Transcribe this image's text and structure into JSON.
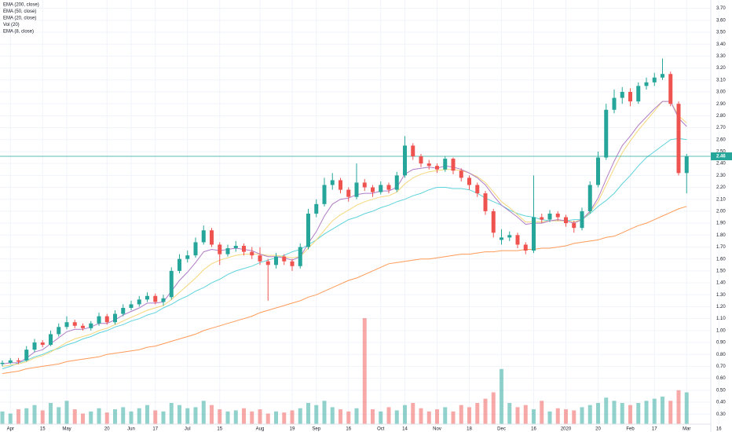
{
  "chart_data": {
    "type": "candlestick",
    "categories": [
      null,
      "Apr",
      null,
      null,
      null,
      "15",
      null,
      null,
      "May",
      null,
      null,
      null,
      null,
      "20",
      null,
      null,
      "Jun",
      null,
      null,
      "17",
      null,
      null,
      null,
      "Jul",
      null,
      null,
      null,
      "15",
      null,
      null,
      null,
      null,
      "Aug",
      null,
      null,
      null,
      "19",
      null,
      null,
      "Sep",
      null,
      null,
      null,
      "16",
      null,
      null,
      null,
      "Oct",
      null,
      null,
      "14",
      null,
      null,
      null,
      "Nov",
      null,
      null,
      null,
      "18",
      null,
      null,
      null,
      "Dec",
      null,
      null,
      null,
      "16",
      null,
      null,
      null,
      "2020",
      null,
      null,
      null,
      "20",
      null,
      null,
      null,
      "Feb",
      null,
      null,
      "17",
      null,
      null,
      null,
      "Mar",
      null,
      null,
      null,
      "16"
    ],
    "open": [
      0.72,
      0.73,
      0.75,
      0.75,
      0.84,
      0.9,
      0.88,
      0.97,
      1.03,
      1.07,
      1.04,
      1.02,
      1.06,
      1.12,
      1.07,
      1.14,
      1.19,
      1.22,
      1.26,
      1.29,
      1.24,
      1.28,
      1.5,
      1.6,
      1.63,
      1.74,
      1.84,
      1.72,
      1.64,
      1.69,
      1.71,
      1.66,
      1.63,
      1.58,
      1.55,
      1.62,
      1.58,
      1.54,
      1.7,
      1.98,
      2.06,
      2.22,
      2.26,
      2.18,
      2.12,
      2.24,
      2.2,
      2.16,
      2.22,
      2.18,
      2.3,
      2.55,
      2.46,
      2.4,
      2.38,
      2.35,
      2.44,
      2.34,
      2.28,
      2.22,
      2.15,
      2.0,
      1.76,
      1.78,
      1.8,
      1.72,
      1.67,
      1.95,
      1.93,
      1.98,
      1.95,
      1.9,
      1.86,
      2.0,
      2.22,
      2.45,
      2.85,
      2.95,
      3.0,
      2.92,
      3.05,
      3.08,
      3.12,
      3.15,
      2.9,
      2.32,
      null,
      null,
      null,
      null
    ],
    "high": [
      0.75,
      0.77,
      0.77,
      0.87,
      0.93,
      0.92,
      1.0,
      1.06,
      1.12,
      1.09,
      1.06,
      1.08,
      1.15,
      1.14,
      1.17,
      1.22,
      1.25,
      1.29,
      1.32,
      1.31,
      1.3,
      1.53,
      1.64,
      1.67,
      1.78,
      1.88,
      1.86,
      1.74,
      1.72,
      1.75,
      1.73,
      1.7,
      1.7,
      1.6,
      1.65,
      1.64,
      1.6,
      1.73,
      2.02,
      2.1,
      2.28,
      2.32,
      2.28,
      2.2,
      2.4,
      2.27,
      2.22,
      2.25,
      2.24,
      2.33,
      2.63,
      2.57,
      2.48,
      2.43,
      2.4,
      2.46,
      2.45,
      2.36,
      2.3,
      2.24,
      2.17,
      2.02,
      1.85,
      1.83,
      1.82,
      1.74,
      2.3,
      1.98,
      2.01,
      2.0,
      1.97,
      1.92,
      2.03,
      2.25,
      2.5,
      2.9,
      3.02,
      3.04,
      3.03,
      3.08,
      3.12,
      3.16,
      3.28,
      3.17,
      2.92,
      2.48,
      null,
      null,
      null,
      null
    ],
    "low": [
      0.7,
      0.72,
      0.72,
      0.74,
      0.82,
      0.86,
      0.87,
      0.95,
      1.01,
      1.02,
      1.0,
      1.0,
      1.04,
      1.05,
      1.05,
      1.12,
      1.17,
      1.2,
      1.24,
      1.22,
      1.21,
      1.26,
      1.48,
      1.57,
      1.61,
      1.72,
      1.7,
      1.55,
      1.62,
      1.66,
      1.63,
      1.6,
      1.55,
      1.25,
      1.52,
      1.55,
      1.5,
      1.52,
      1.68,
      1.95,
      2.04,
      2.18,
      2.15,
      2.08,
      2.1,
      2.17,
      2.12,
      2.14,
      2.15,
      2.16,
      2.28,
      2.43,
      2.37,
      2.35,
      2.32,
      2.33,
      2.31,
      2.25,
      2.18,
      2.12,
      1.97,
      1.78,
      1.72,
      1.75,
      1.69,
      1.64,
      1.65,
      1.9,
      1.91,
      1.92,
      1.87,
      1.82,
      1.84,
      1.98,
      2.2,
      2.43,
      2.82,
      2.9,
      2.88,
      2.9,
      3.02,
      3.05,
      3.1,
      2.88,
      2.3,
      2.15,
      null,
      null,
      null,
      null
    ],
    "close": [
      0.73,
      0.75,
      0.74,
      0.84,
      0.9,
      0.88,
      0.97,
      1.03,
      1.07,
      1.04,
      1.02,
      1.06,
      1.12,
      1.07,
      1.14,
      1.19,
      1.22,
      1.26,
      1.29,
      1.24,
      1.27,
      1.5,
      1.6,
      1.63,
      1.74,
      1.84,
      1.72,
      1.64,
      1.69,
      1.71,
      1.66,
      1.63,
      1.58,
      1.55,
      1.62,
      1.58,
      1.54,
      1.7,
      1.98,
      2.06,
      2.22,
      2.26,
      2.18,
      2.12,
      2.24,
      2.2,
      2.16,
      2.22,
      2.18,
      2.3,
      2.55,
      2.46,
      2.4,
      2.38,
      2.35,
      2.44,
      2.34,
      2.28,
      2.22,
      2.15,
      2.0,
      1.82,
      1.78,
      1.8,
      1.72,
      1.67,
      1.95,
      1.93,
      1.98,
      1.95,
      1.9,
      1.86,
      2.0,
      2.22,
      2.45,
      2.85,
      2.95,
      3.0,
      2.92,
      3.05,
      3.08,
      3.12,
      3.15,
      2.9,
      2.32,
      2.46,
      null,
      null,
      null,
      null
    ],
    "volume": {
      "name": "Vol (20)",
      "values": [
        12,
        10,
        14,
        15,
        18,
        13,
        20,
        16,
        22,
        14,
        10,
        12,
        15,
        11,
        14,
        16,
        12,
        15,
        18,
        13,
        12,
        20,
        18,
        15,
        16,
        22,
        18,
        14,
        12,
        13,
        15,
        12,
        14,
        10,
        12,
        11,
        13,
        15,
        20,
        18,
        22,
        16,
        14,
        12,
        15,
        100,
        14,
        12,
        16,
        13,
        18,
        20,
        15,
        12,
        14,
        16,
        12,
        18,
        16,
        20,
        24,
        30,
        52,
        20,
        16,
        18,
        14,
        22,
        12,
        15,
        14,
        13,
        16,
        18,
        20,
        25,
        22,
        20,
        18,
        20,
        22,
        24,
        26,
        22,
        32,
        30,
        null,
        null,
        null,
        null
      ]
    },
    "series": [
      {
        "name": "EMA (200, close)",
        "color": "#ff9a57",
        "values": [
          0.64,
          0.65,
          0.66,
          0.68,
          0.69,
          0.7,
          0.71,
          0.72,
          0.74,
          0.75,
          0.76,
          0.77,
          0.78,
          0.8,
          0.81,
          0.82,
          0.83,
          0.84,
          0.86,
          0.87,
          0.89,
          0.91,
          0.93,
          0.95,
          0.97,
          1.0,
          1.02,
          1.04,
          1.06,
          1.08,
          1.1,
          1.12,
          1.15,
          1.17,
          1.19,
          1.21,
          1.23,
          1.25,
          1.28,
          1.3,
          1.33,
          1.36,
          1.39,
          1.42,
          1.44,
          1.47,
          1.5,
          1.53,
          1.56,
          1.57,
          1.58,
          1.59,
          1.6,
          1.6,
          1.61,
          1.62,
          1.63,
          1.64,
          1.64,
          1.65,
          1.66,
          1.66,
          1.67,
          1.67,
          1.67,
          1.68,
          1.68,
          1.69,
          1.69,
          1.7,
          1.71,
          1.73,
          1.74,
          1.75,
          1.76,
          1.78,
          1.79,
          1.82,
          1.85,
          1.88,
          1.9,
          1.93,
          1.96,
          1.99,
          2.02,
          2.04,
          null,
          null,
          null,
          null
        ]
      },
      {
        "name": "EMA (50, close)",
        "color": "#5fd3dc",
        "values": [
          0.68,
          0.7,
          0.73,
          0.75,
          0.78,
          0.8,
          0.83,
          0.85,
          0.88,
          0.9,
          0.93,
          0.95,
          0.98,
          1.0,
          1.03,
          1.05,
          1.08,
          1.1,
          1.13,
          1.15,
          1.19,
          1.22,
          1.26,
          1.29,
          1.33,
          1.36,
          1.4,
          1.43,
          1.47,
          1.5,
          1.52,
          1.54,
          1.57,
          1.59,
          1.61,
          1.63,
          1.66,
          1.68,
          1.72,
          1.76,
          1.81,
          1.85,
          1.89,
          1.93,
          1.95,
          1.98,
          2.0,
          2.03,
          2.05,
          2.08,
          2.1,
          2.13,
          2.15,
          2.18,
          2.2,
          2.2,
          2.19,
          2.19,
          2.18,
          2.15,
          2.11,
          2.08,
          2.05,
          2.01,
          1.98,
          1.96,
          1.95,
          1.93,
          1.92,
          1.92,
          1.92,
          1.93,
          1.93,
          1.98,
          2.04,
          2.09,
          2.15,
          2.23,
          2.3,
          2.38,
          2.45,
          2.5,
          2.55,
          2.6,
          2.61,
          2.6,
          null,
          null,
          null,
          null
        ]
      },
      {
        "name": "EMA (20, close)",
        "color": "#f5d77a",
        "values": [
          0.7,
          0.71,
          0.72,
          0.74,
          0.77,
          0.79,
          0.82,
          0.86,
          0.9,
          0.93,
          0.95,
          0.97,
          1.0,
          1.02,
          1.05,
          1.08,
          1.11,
          1.14,
          1.17,
          1.19,
          1.21,
          1.26,
          1.32,
          1.38,
          1.44,
          1.51,
          1.56,
          1.59,
          1.61,
          1.63,
          1.64,
          1.64,
          1.64,
          1.63,
          1.63,
          1.62,
          1.61,
          1.62,
          1.69,
          1.76,
          1.84,
          1.92,
          1.97,
          2.01,
          2.05,
          2.08,
          2.1,
          2.12,
          2.13,
          2.16,
          2.23,
          2.28,
          2.31,
          2.33,
          2.34,
          2.35,
          2.35,
          2.34,
          2.32,
          2.29,
          2.24,
          2.16,
          2.08,
          2.03,
          1.97,
          1.91,
          1.91,
          1.91,
          1.92,
          1.92,
          1.92,
          1.91,
          1.93,
          1.99,
          2.08,
          2.22,
          2.36,
          2.49,
          2.59,
          2.68,
          2.76,
          2.84,
          2.92,
          2.92,
          2.8,
          2.74,
          null,
          null,
          null,
          null
        ]
      },
      {
        "name": "EMA (8, close)",
        "color": "#b07cc6",
        "values": [
          0.72,
          0.73,
          0.73,
          0.77,
          0.82,
          0.84,
          0.89,
          0.94,
          0.99,
          1.01,
          1.01,
          1.03,
          1.06,
          1.06,
          1.09,
          1.13,
          1.16,
          1.19,
          1.23,
          1.23,
          1.24,
          1.33,
          1.42,
          1.49,
          1.57,
          1.66,
          1.68,
          1.67,
          1.68,
          1.69,
          1.68,
          1.67,
          1.64,
          1.62,
          1.62,
          1.61,
          1.59,
          1.62,
          1.73,
          1.83,
          1.96,
          2.06,
          2.1,
          2.11,
          2.14,
          2.15,
          2.15,
          2.17,
          2.17,
          2.2,
          2.31,
          2.35,
          2.36,
          2.37,
          2.36,
          2.38,
          2.37,
          2.35,
          2.32,
          2.28,
          2.22,
          2.13,
          2.05,
          2.0,
          1.95,
          1.89,
          1.9,
          1.9,
          1.92,
          1.93,
          1.92,
          1.9,
          1.93,
          2.0,
          2.11,
          2.27,
          2.42,
          2.55,
          2.63,
          2.72,
          2.79,
          2.86,
          2.92,
          2.92,
          2.78,
          2.71,
          null,
          null,
          null,
          null
        ]
      }
    ],
    "up_color": "#26a69a",
    "down_color": "#ef5350",
    "last_price": 2.46,
    "ylim": [
      0.15,
      3.77
    ],
    "yticks": [
      {
        "value": 0.3,
        "label": "0.30"
      },
      {
        "value": 0.4,
        "label": "0.40"
      },
      {
        "value": 0.5,
        "label": "0.50"
      },
      {
        "value": 0.6,
        "label": "0.60"
      },
      {
        "value": 0.7,
        "label": "0.70"
      },
      {
        "value": 0.8,
        "label": "0.80"
      },
      {
        "value": 0.9,
        "label": "0.90"
      },
      {
        "value": 1.0,
        "label": "1.00"
      },
      {
        "value": 1.1,
        "label": "1.10"
      },
      {
        "value": 1.2,
        "label": "1.20"
      },
      {
        "value": 1.3,
        "label": "1.30"
      },
      {
        "value": 1.4,
        "label": "1.40"
      },
      {
        "value": 1.5,
        "label": "1.50"
      },
      {
        "value": 1.6,
        "label": "1.60"
      },
      {
        "value": 1.7,
        "label": "1.70"
      },
      {
        "value": 1.8,
        "label": "1.80"
      },
      {
        "value": 1.9,
        "label": "1.90"
      },
      {
        "value": 2.0,
        "label": "2.00"
      },
      {
        "value": 2.1,
        "label": "2.10"
      },
      {
        "value": 2.2,
        "label": "2.20"
      },
      {
        "value": 2.3,
        "label": "2.30"
      },
      {
        "value": 2.4,
        "label": "2.40"
      },
      {
        "value": 2.5,
        "label": "2.50"
      },
      {
        "value": 2.6,
        "label": "2.60"
      },
      {
        "value": 2.7,
        "label": "2.70"
      },
      {
        "value": 2.8,
        "label": "2.80"
      },
      {
        "value": 2.9,
        "label": "2.90"
      },
      {
        "value": 3.0,
        "label": "3.00"
      },
      {
        "value": 3.1,
        "label": "3.10"
      },
      {
        "value": 3.2,
        "label": "3.20"
      },
      {
        "value": 3.3,
        "label": "3.30"
      },
      {
        "value": 3.4,
        "label": "3.40"
      },
      {
        "value": 3.5,
        "label": "3.50"
      },
      {
        "value": 3.6,
        "label": "3.60"
      },
      {
        "value": 3.7,
        "label": "3.70"
      }
    ],
    "grid": true
  }
}
